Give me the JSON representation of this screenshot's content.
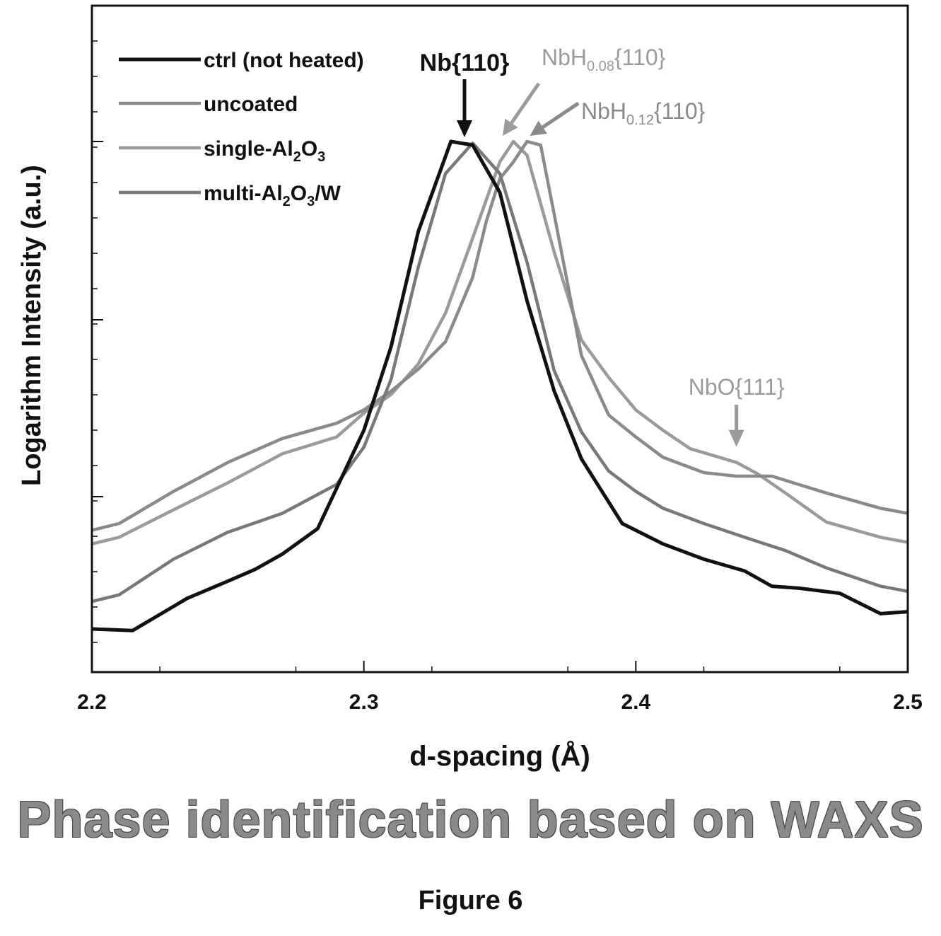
{
  "chart_data": {
    "type": "line",
    "xlabel": "d-spacing (Å)",
    "ylabel": "Logarithm Intensity (a.u.)",
    "xlim": [
      2.2,
      2.5
    ],
    "ylim": [
      0,
      1
    ],
    "x_ticks": [
      "2.2",
      "2.3",
      "2.4",
      "2.5"
    ],
    "y_tick_labels": false,
    "grid": false,
    "legend_position": "top-left",
    "series": [
      {
        "name": "ctrl (not heated)",
        "color": "#111111",
        "x": [
          2.2,
          2.215,
          2.235,
          2.25,
          2.26,
          2.27,
          2.283,
          2.3,
          2.31,
          2.32,
          2.332,
          2.34,
          2.35,
          2.36,
          2.37,
          2.38,
          2.395,
          2.41,
          2.425,
          2.44,
          2.45,
          2.46,
          2.475,
          2.49,
          2.5
        ],
        "y": [
          0.043,
          0.04,
          0.103,
          0.137,
          0.16,
          0.19,
          0.24,
          0.433,
          0.597,
          0.823,
          1.0,
          0.993,
          0.9,
          0.687,
          0.51,
          0.377,
          0.25,
          0.21,
          0.18,
          0.157,
          0.127,
          0.123,
          0.113,
          0.073,
          0.077
        ]
      },
      {
        "name": "uncoated",
        "color": "#8a8a8a",
        "x": [
          2.2,
          2.21,
          2.23,
          2.25,
          2.27,
          2.29,
          2.3,
          2.31,
          2.32,
          2.33,
          2.34,
          2.345,
          2.35,
          2.355,
          2.36,
          2.365,
          2.37,
          2.38,
          2.39,
          2.4,
          2.41,
          2.425,
          2.437,
          2.45,
          2.47,
          2.49,
          2.5
        ],
        "y": [
          0.237,
          0.25,
          0.313,
          0.37,
          0.417,
          0.447,
          0.473,
          0.51,
          0.553,
          0.607,
          0.733,
          0.843,
          0.927,
          0.96,
          1.0,
          0.993,
          0.857,
          0.58,
          0.463,
          0.42,
          0.38,
          0.35,
          0.343,
          0.343,
          0.31,
          0.28,
          0.27
        ]
      },
      {
        "name": "single-Al2O3",
        "color": "#9a9a9a",
        "x": [
          2.2,
          2.21,
          2.23,
          2.25,
          2.27,
          2.29,
          2.3,
          2.31,
          2.32,
          2.33,
          2.34,
          2.35,
          2.355,
          2.36,
          2.37,
          2.38,
          2.39,
          2.4,
          2.41,
          2.42,
          2.437,
          2.445,
          2.455,
          2.47,
          2.49,
          2.5
        ],
        "y": [
          0.21,
          0.223,
          0.277,
          0.33,
          0.387,
          0.42,
          0.467,
          0.503,
          0.563,
          0.663,
          0.81,
          0.96,
          1.0,
          0.973,
          0.783,
          0.61,
          0.537,
          0.473,
          0.433,
          0.397,
          0.37,
          0.347,
          0.31,
          0.253,
          0.223,
          0.213
        ]
      },
      {
        "name": "multi-Al2O3/W",
        "color": "#787878",
        "x": [
          2.2,
          2.21,
          2.23,
          2.25,
          2.27,
          2.29,
          2.3,
          2.31,
          2.32,
          2.33,
          2.34,
          2.35,
          2.36,
          2.37,
          2.38,
          2.39,
          2.4,
          2.41,
          2.425,
          2.44,
          2.455,
          2.47,
          2.49,
          2.5
        ],
        "y": [
          0.097,
          0.11,
          0.18,
          0.233,
          0.27,
          0.327,
          0.4,
          0.533,
          0.753,
          0.937,
          0.997,
          0.937,
          0.763,
          0.55,
          0.43,
          0.353,
          0.313,
          0.28,
          0.25,
          0.223,
          0.197,
          0.163,
          0.127,
          0.117
        ]
      }
    ],
    "annotations": [
      {
        "id": "nb110",
        "text_main": "Nb{110}",
        "color": "#111111",
        "x": 2.337,
        "y": 1.0
      },
      {
        "id": "nbh008",
        "text_main": "NbH",
        "text_sub": "0.08",
        "text_after": "{110}",
        "color": "#9a9a9a",
        "x": 2.35,
        "y": 1.0
      },
      {
        "id": "nbh012",
        "text_main": "NbH",
        "text_sub": "0.12",
        "text_after": "{110}",
        "color": "#8a8a8a",
        "x": 2.36,
        "y": 1.0
      },
      {
        "id": "nbo111",
        "text_main": "NbO{111}",
        "color": "#9a9a9a",
        "x": 2.437,
        "y": 0.37
      }
    ]
  },
  "legend": {
    "items": [
      {
        "parts": [
          "ctrl (not heated)"
        ]
      },
      {
        "parts": [
          "uncoated"
        ]
      },
      {
        "parts": [
          "single-Al",
          "2",
          "O",
          "3"
        ]
      },
      {
        "parts": [
          "multi-Al",
          "2",
          "O",
          "3",
          "/W"
        ]
      }
    ]
  },
  "caption": {
    "title": "Phase identification based on WAXS",
    "figure_label": "Figure 6"
  }
}
